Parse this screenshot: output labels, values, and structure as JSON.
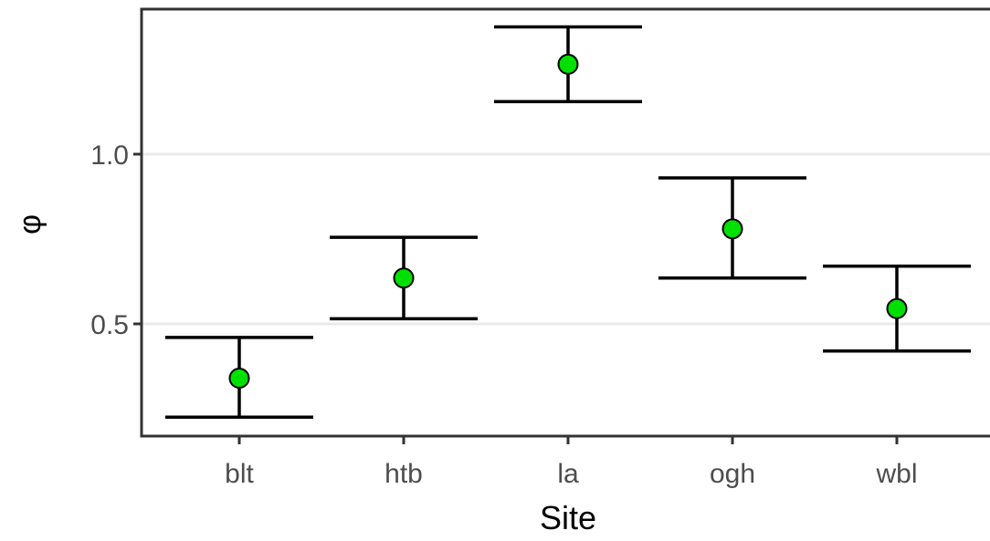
{
  "chart_data": {
    "type": "scatter",
    "subtype": "point-with-error-bars",
    "title": "",
    "xlabel": "Site",
    "ylabel": "φ",
    "categories": [
      "blt",
      "htb",
      "la",
      "ogh",
      "wbl"
    ],
    "values": [
      0.34,
      0.635,
      1.265,
      0.78,
      0.545
    ],
    "lower": [
      0.225,
      0.515,
      1.155,
      0.635,
      0.42
    ],
    "upper": [
      0.46,
      0.755,
      1.375,
      0.93,
      0.67
    ],
    "yticks": [
      0.5,
      1.0
    ],
    "ytick_labels": [
      "0.5",
      "1.0"
    ],
    "ylim": [
      0.17,
      1.44
    ],
    "grid": "horizontal-major",
    "point_color": "#00e000",
    "point_stroke": "#000000",
    "errorbar_color": "#000000",
    "grid_color": "#ebebeb",
    "axis_color": "#333333",
    "tick_label_color": "#4d4d4d"
  }
}
